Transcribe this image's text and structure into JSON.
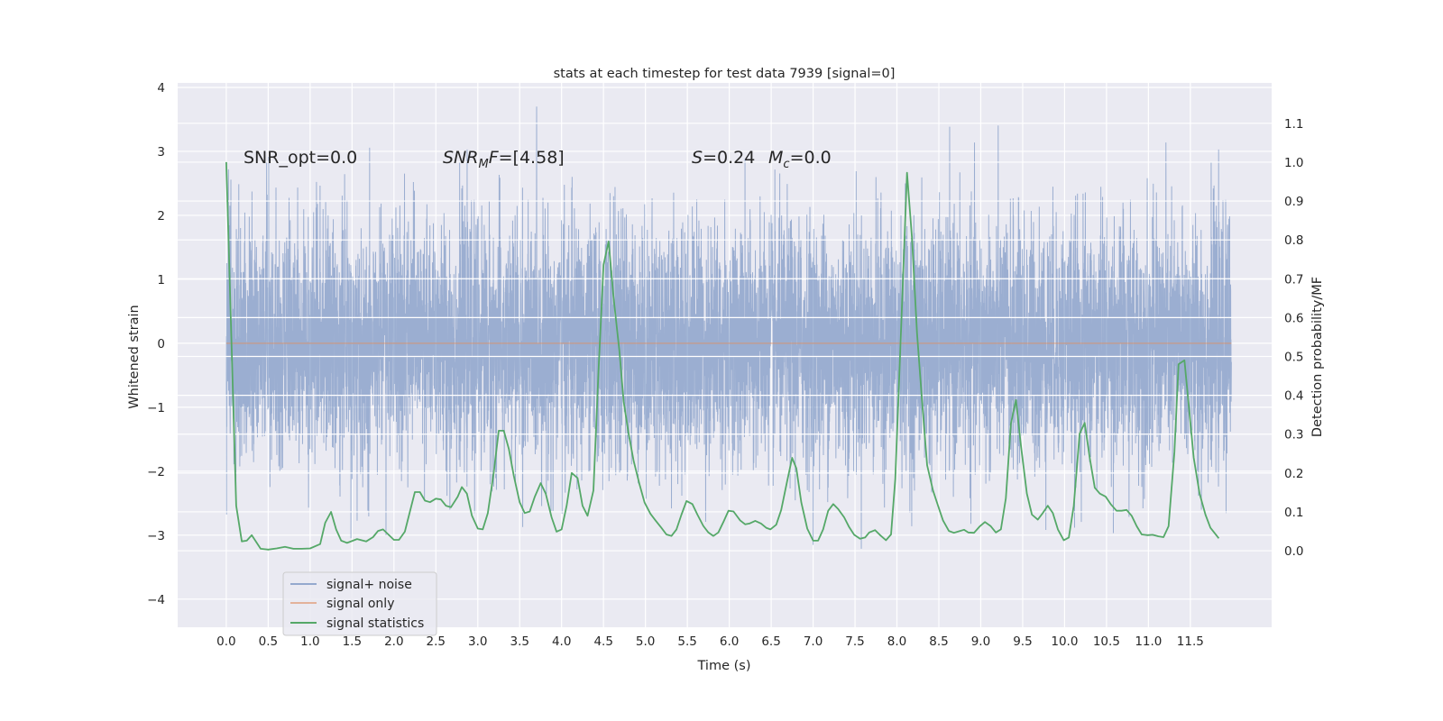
{
  "chart_data": {
    "type": "line",
    "title": "stats at each timestep for test data 7939 [signal=0]",
    "xlabel": "Time (s)",
    "ylabel": "Whitened strain",
    "ylabel_right": "Detection probability/MF",
    "xlim": [
      -0.58,
      12.47
    ],
    "ylim": [
      -4.44,
      4.07
    ],
    "ylim_right": [
      -0.197,
      1.204
    ],
    "grid": true,
    "legend_position": "lower-left",
    "x_ticks": [
      "0.0",
      "0.5",
      "1.0",
      "1.5",
      "2.0",
      "2.5",
      "3.0",
      "3.5",
      "4.0",
      "4.5",
      "5.0",
      "5.5",
      "6.0",
      "6.5",
      "7.0",
      "7.5",
      "8.0",
      "8.5",
      "9.0",
      "9.5",
      "10.0",
      "10.5",
      "11.0",
      "11.5"
    ],
    "y_ticks": [
      "−4",
      "−3",
      "−2",
      "−1",
      "0",
      "1",
      "2",
      "3",
      "4"
    ],
    "y_ticks_right": [
      "0.0",
      "0.1",
      "0.2",
      "0.3",
      "0.4",
      "0.5",
      "0.6",
      "0.7",
      "0.8",
      "0.9",
      "1.0",
      "1.1"
    ],
    "annotations": {
      "snr_opt": "SNR_opt=0.0",
      "snr_mf": {
        "italic": "SNR",
        "sub": "M",
        "italic2": "F",
        "rest": "=[4.58]"
      },
      "s": {
        "italic": "S",
        "rest": "=0.24"
      },
      "mc": {
        "italic": "M",
        "sub": "c",
        "rest": "=0.0"
      }
    },
    "series": [
      {
        "name": "signal+ noise",
        "axis": "left",
        "color": "#4c72b0",
        "alpha": 0.5,
        "note_range": [
          -4.1,
          3.7
        ]
      },
      {
        "name": "signal only",
        "axis": "left",
        "color": "#dd8452",
        "alpha": 0.5,
        "x": [
          0,
          11.99
        ],
        "y": [
          0,
          0
        ]
      },
      {
        "name": "signal statistics",
        "axis": "right",
        "color": "#55a868",
        "x": [
          0,
          0.118,
          0.185,
          0.244,
          0.303,
          0.41,
          0.5,
          0.6,
          0.7,
          0.8,
          0.9,
          1.0,
          1.12,
          1.18,
          1.25,
          1.31,
          1.37,
          1.44,
          1.56,
          1.67,
          1.75,
          1.81,
          1.87,
          2.0,
          2.06,
          2.13,
          2.25,
          2.31,
          2.37,
          2.43,
          2.5,
          2.56,
          2.62,
          2.68,
          2.76,
          2.81,
          2.87,
          2.93,
          3.0,
          3.06,
          3.12,
          3.19,
          3.25,
          3.31,
          3.37,
          3.43,
          3.5,
          3.56,
          3.62,
          3.68,
          3.75,
          3.81,
          3.88,
          3.94,
          4.0,
          4.06,
          4.12,
          4.19,
          4.25,
          4.31,
          4.38,
          4.44,
          4.5,
          4.56,
          4.62,
          4.69,
          4.74,
          4.8,
          4.86,
          4.93,
          4.99,
          5.06,
          5.12,
          5.19,
          5.25,
          5.31,
          5.37,
          5.43,
          5.49,
          5.56,
          5.62,
          5.69,
          5.75,
          5.81,
          5.87,
          5.93,
          5.99,
          6.05,
          6.13,
          6.19,
          6.24,
          6.31,
          6.38,
          6.44,
          6.49,
          6.56,
          6.62,
          6.69,
          6.75,
          6.8,
          6.86,
          6.93,
          7.0,
          7.06,
          7.12,
          7.18,
          7.24,
          7.3,
          7.37,
          7.43,
          7.49,
          7.56,
          7.62,
          7.67,
          7.74,
          7.8,
          7.87,
          7.93,
          7.98,
          8.05,
          8.12,
          8.18,
          8.24,
          8.3,
          8.36,
          8.43,
          8.49,
          8.55,
          8.62,
          8.68,
          8.74,
          8.8,
          8.85,
          8.92,
          8.99,
          9.05,
          9.12,
          9.18,
          9.24,
          9.3,
          9.36,
          9.42,
          9.48,
          9.55,
          9.61,
          9.68,
          9.74,
          9.8,
          9.86,
          9.92,
          9.99,
          10.05,
          10.11,
          10.18,
          10.24,
          10.3,
          10.36,
          10.42,
          10.49,
          10.55,
          10.62,
          10.68,
          10.74,
          10.8,
          10.86,
          10.92,
          10.99,
          11.05,
          11.12,
          11.18,
          11.24,
          11.31,
          11.36,
          11.43,
          11.48,
          11.54,
          11.61,
          11.68,
          11.74,
          11.84
        ],
        "y": [
          1.0,
          0.116,
          0.024,
          0.026,
          0.04,
          0.005,
          0.003,
          0.006,
          0.01,
          0.005,
          0.005,
          0.006,
          0.017,
          0.072,
          0.1,
          0.055,
          0.026,
          0.02,
          0.03,
          0.024,
          0.035,
          0.051,
          0.055,
          0.028,
          0.028,
          0.049,
          0.151,
          0.151,
          0.129,
          0.125,
          0.134,
          0.132,
          0.116,
          0.112,
          0.139,
          0.164,
          0.147,
          0.09,
          0.057,
          0.055,
          0.097,
          0.2,
          0.309,
          0.309,
          0.262,
          0.193,
          0.125,
          0.097,
          0.101,
          0.139,
          0.174,
          0.147,
          0.086,
          0.049,
          0.055,
          0.116,
          0.2,
          0.187,
          0.116,
          0.09,
          0.155,
          0.461,
          0.736,
          0.796,
          0.652,
          0.514,
          0.384,
          0.3,
          0.231,
          0.17,
          0.124,
          0.095,
          0.078,
          0.059,
          0.042,
          0.038,
          0.055,
          0.093,
          0.128,
          0.12,
          0.093,
          0.064,
          0.047,
          0.038,
          0.047,
          0.074,
          0.103,
          0.101,
          0.078,
          0.068,
          0.07,
          0.077,
          0.07,
          0.059,
          0.055,
          0.067,
          0.105,
          0.178,
          0.239,
          0.212,
          0.124,
          0.057,
          0.026,
          0.026,
          0.055,
          0.103,
          0.12,
          0.107,
          0.086,
          0.061,
          0.041,
          0.031,
          0.034,
          0.047,
          0.053,
          0.04,
          0.027,
          0.042,
          0.185,
          0.575,
          0.973,
          0.805,
          0.56,
          0.384,
          0.22,
          0.155,
          0.116,
          0.078,
          0.051,
          0.046,
          0.05,
          0.054,
          0.047,
          0.046,
          0.063,
          0.074,
          0.063,
          0.047,
          0.055,
          0.135,
          0.327,
          0.388,
          0.269,
          0.147,
          0.093,
          0.08,
          0.097,
          0.116,
          0.097,
          0.055,
          0.027,
          0.034,
          0.116,
          0.301,
          0.329,
          0.239,
          0.162,
          0.147,
          0.139,
          0.12,
          0.103,
          0.103,
          0.105,
          0.09,
          0.063,
          0.042,
          0.04,
          0.041,
          0.037,
          0.035,
          0.063,
          0.254,
          0.48,
          0.49,
          0.376,
          0.239,
          0.147,
          0.093,
          0.059,
          0.032
        ]
      }
    ],
    "colors": {
      "background": "#eaeaf2",
      "grid": "#ffffff"
    }
  }
}
